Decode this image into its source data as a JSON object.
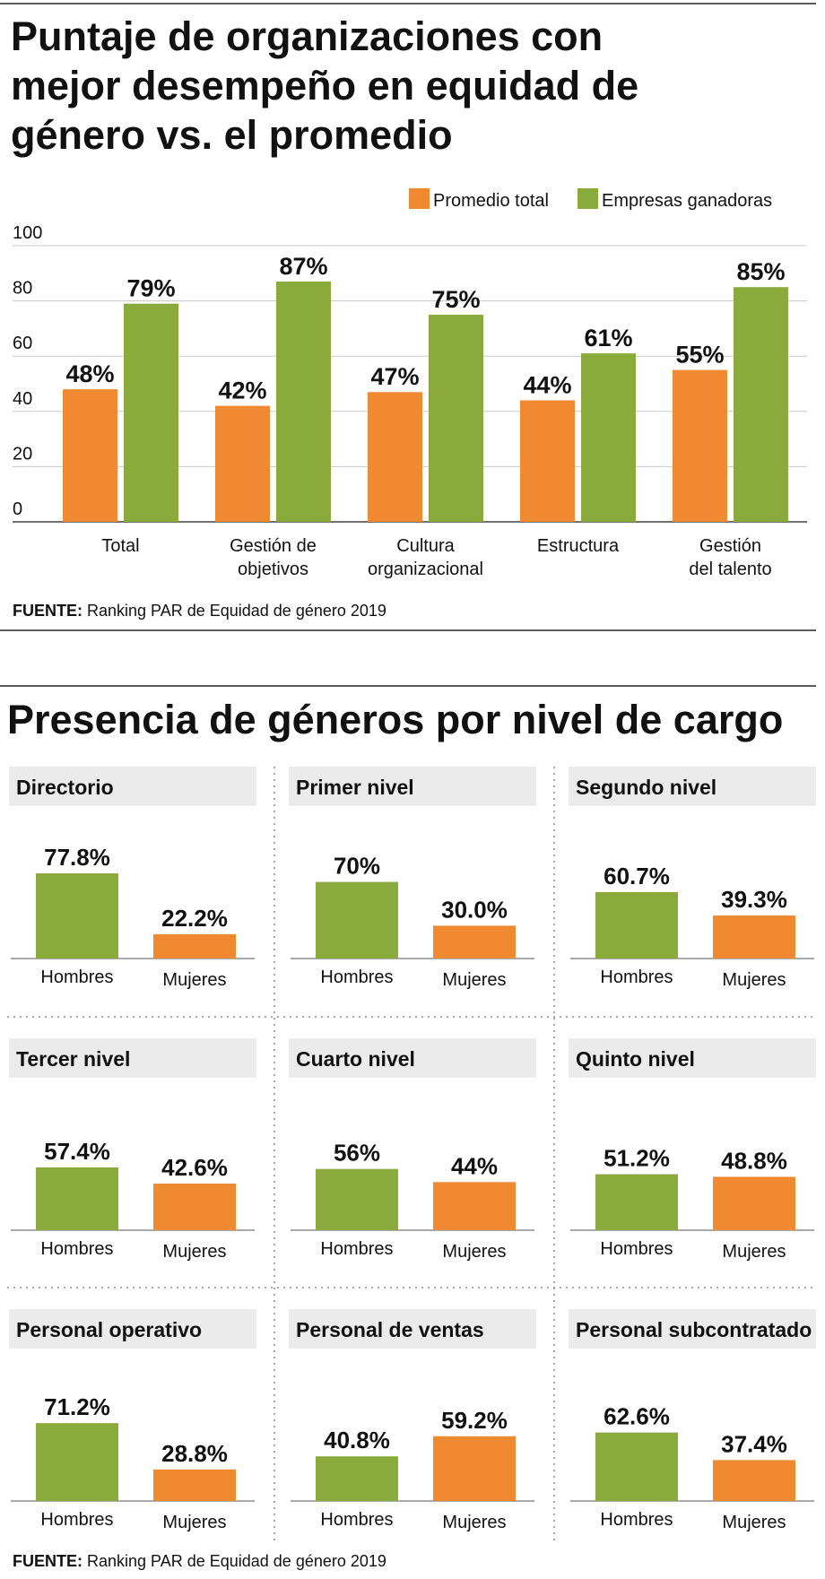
{
  "colors": {
    "promedio": "#ef8a33",
    "ganadoras": "#8aab3b",
    "hombres": "#8aab3b",
    "mujeres": "#ef8a33",
    "header_bg": "#ebebeb",
    "grid": "#c8c8c8",
    "text": "#111111"
  },
  "chart_data": [
    {
      "type": "bar",
      "title": "Puntaje de organizaciones con mejor desempeño en equidad de género vs. el promedio",
      "title_lines": [
        "Puntaje de organizaciones con",
        "mejor desempeño en equidad de",
        "género vs. el promedio"
      ],
      "categories": [
        "Total",
        "Gestión de objetivos",
        "Cultura organizacional",
        "Estructura",
        "Gestión del talento"
      ],
      "category_lines": [
        [
          "Total"
        ],
        [
          "Gestión de",
          "objetivos"
        ],
        [
          "Cultura",
          "organizacional"
        ],
        [
          "Estructura"
        ],
        [
          "Gestión",
          "del talento"
        ]
      ],
      "series": [
        {
          "name": "Promedio total",
          "values": [
            48,
            42,
            47,
            44,
            55
          ],
          "labels": [
            "48%",
            "42%",
            "47%",
            "44%",
            "55%"
          ]
        },
        {
          "name": "Empresas ganadoras",
          "values": [
            79,
            87,
            75,
            61,
            85
          ],
          "labels": [
            "79%",
            "87%",
            "75%",
            "61%",
            "85%"
          ]
        }
      ],
      "yticks": [
        "0",
        "20",
        "40",
        "60",
        "80",
        "100"
      ],
      "ylim": [
        0,
        100
      ],
      "grid": true,
      "legend": "top-right",
      "source_label": "FUENTE:",
      "source_text": " Ranking PAR de Equidad de género 2019"
    },
    {
      "type": "bar",
      "title": "Presencia de géneros por nivel de cargo",
      "categories": [
        "Hombres",
        "Mujeres"
      ],
      "panels": [
        {
          "name": "Directorio",
          "values": [
            77.8,
            22.2
          ],
          "labels": [
            "77.8%",
            "22.2%"
          ]
        },
        {
          "name": "Primer nivel",
          "values": [
            70,
            30.0
          ],
          "labels": [
            "70%",
            "30.0%"
          ]
        },
        {
          "name": "Segundo nivel",
          "values": [
            60.7,
            39.3
          ],
          "labels": [
            "60.7%",
            "39.3%"
          ]
        },
        {
          "name": "Tercer nivel",
          "values": [
            57.4,
            42.6
          ],
          "labels": [
            "57.4%",
            "42.6%"
          ]
        },
        {
          "name": "Cuarto nivel",
          "values": [
            56,
            44
          ],
          "labels": [
            "56%",
            "44%"
          ]
        },
        {
          "name": "Quinto nivel",
          "values": [
            51.2,
            48.8
          ],
          "labels": [
            "51.2%",
            "48.8%"
          ]
        },
        {
          "name": "Personal operativo",
          "values": [
            71.2,
            28.8
          ],
          "labels": [
            "71.2%",
            "28.8%"
          ]
        },
        {
          "name": "Personal de ventas",
          "values": [
            40.8,
            59.2
          ],
          "labels": [
            "40.8%",
            "59.2%"
          ]
        },
        {
          "name": "Personal subcontratado",
          "values": [
            62.6,
            37.4
          ],
          "labels": [
            "62.6%",
            "37.4%"
          ]
        }
      ],
      "source_label": "FUENTE:",
      "source_text": " Ranking PAR de Equidad de género 2019"
    }
  ]
}
